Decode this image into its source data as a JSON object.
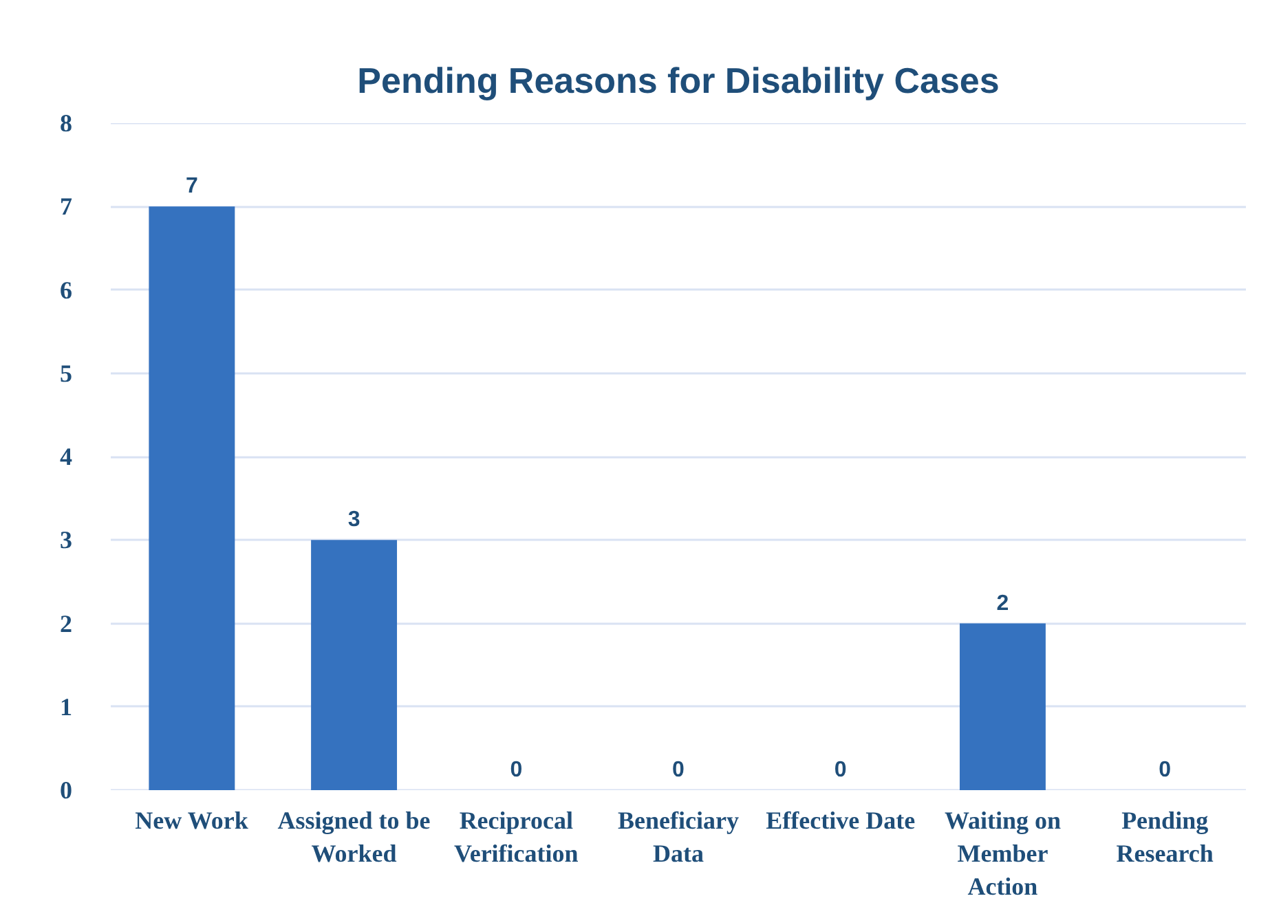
{
  "chart_data": {
    "type": "bar",
    "title": "Pending Reasons for Disability Cases",
    "categories": [
      "New Work",
      "Assigned to be Worked",
      "Reciprocal Verification",
      "Beneficiary Data",
      "Effective Date",
      "Waiting on Member Action",
      "Pending Research"
    ],
    "values": [
      7,
      3,
      0,
      0,
      0,
      2,
      0
    ],
    "color": "#3572bf",
    "ylim": [
      0,
      8
    ],
    "yticks": [
      0,
      1,
      2,
      3,
      4,
      5,
      6,
      7,
      8
    ],
    "grid": "y",
    "data_labels": true
  }
}
